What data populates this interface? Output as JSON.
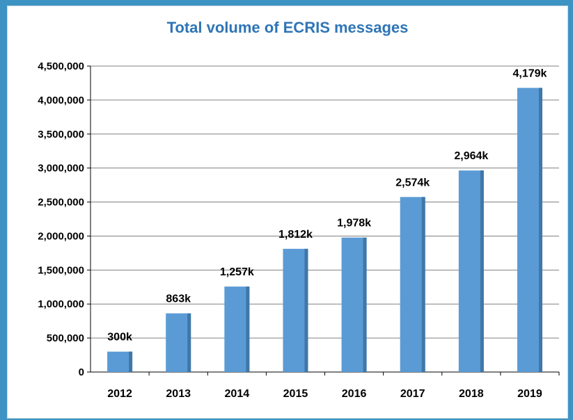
{
  "chart_data": {
    "type": "bar",
    "title": "Total volume of ECRIS messages",
    "xlabel": "",
    "ylabel": "",
    "categories": [
      "2012",
      "2013",
      "2014",
      "2015",
      "2016",
      "2017",
      "2018",
      "2019"
    ],
    "values": [
      300000,
      863000,
      1257000,
      1812000,
      1978000,
      2574000,
      2964000,
      4179000
    ],
    "data_labels": [
      "300k",
      "863k",
      "1,257k",
      "1,812k",
      "1,978k",
      "2,574k",
      "2,964k",
      "4,179k"
    ],
    "ylim": [
      0,
      4500000
    ],
    "y_ticks": [
      0,
      500000,
      1000000,
      1500000,
      2000000,
      2500000,
      3000000,
      3500000,
      4000000,
      4500000
    ],
    "y_tick_labels": [
      "0",
      "500,000",
      "1,000,000",
      "1,500,000",
      "2,000,000",
      "2,500,000",
      "3,000,000",
      "3,500,000",
      "4,000,000",
      "4,500,000"
    ],
    "grid": true,
    "legend": "none",
    "colors": {
      "bar": "#5b9bd5",
      "bar_shade": "#3f77a8",
      "title": "#2e75b6",
      "grid": "#808080",
      "background": "#3d93c4"
    }
  }
}
